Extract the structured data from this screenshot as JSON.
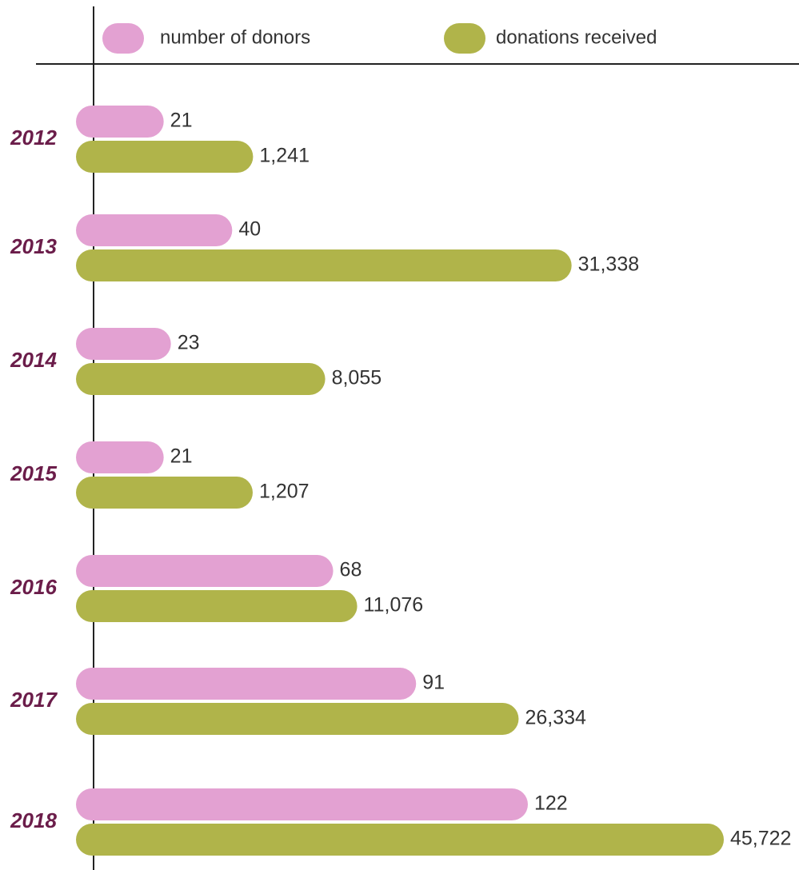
{
  "chart_data": {
    "type": "bar",
    "orientation": "horizontal",
    "categories": [
      "2012",
      "2013",
      "2014",
      "2015",
      "2016",
      "2017",
      "2018"
    ],
    "series": [
      {
        "name": "number of donors",
        "color": "#e3a1d2",
        "values": [
          21,
          40,
          23,
          21,
          68,
          91,
          122
        ]
      },
      {
        "name": "donations received",
        "color": "#b0b44a",
        "values": [
          1241,
          31338,
          8055,
          1207,
          11076,
          26334,
          45722
        ],
        "value_labels": [
          "1,241",
          "31,338",
          "8,055",
          "1,207",
          "11,076",
          "26,334",
          "45,722"
        ]
      }
    ]
  }
}
